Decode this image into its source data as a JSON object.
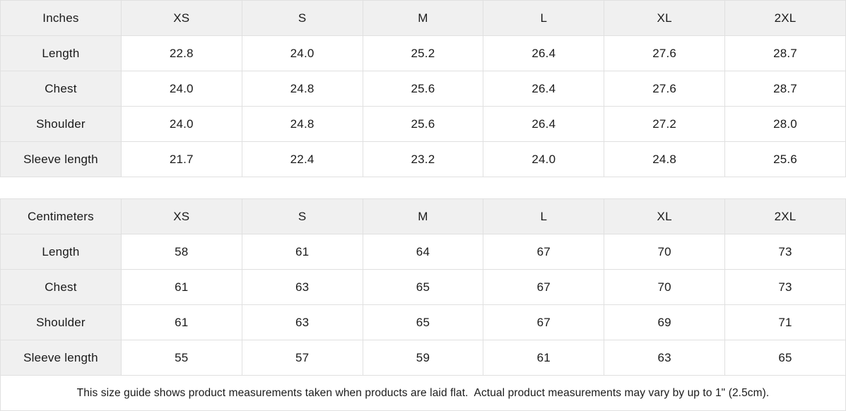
{
  "chart_data": [
    {
      "type": "table",
      "title": "Size guide (Inches)",
      "unit_label": "Inches",
      "sizes": [
        "XS",
        "S",
        "M",
        "L",
        "XL",
        "2XL"
      ],
      "rows": [
        {
          "label": "Length",
          "values": [
            "22.8",
            "24.0",
            "25.2",
            "26.4",
            "27.6",
            "28.7"
          ]
        },
        {
          "label": "Chest",
          "values": [
            "24.0",
            "24.8",
            "25.6",
            "26.4",
            "27.6",
            "28.7"
          ]
        },
        {
          "label": "Shoulder",
          "values": [
            "24.0",
            "24.8",
            "25.6",
            "26.4",
            "27.2",
            "28.0"
          ]
        },
        {
          "label": "Sleeve length",
          "values": [
            "21.7",
            "22.4",
            "23.2",
            "24.0",
            "24.8",
            "25.6"
          ]
        }
      ]
    },
    {
      "type": "table",
      "title": "Size guide (Centimeters)",
      "unit_label": "Centimeters",
      "sizes": [
        "XS",
        "S",
        "M",
        "L",
        "XL",
        "2XL"
      ],
      "rows": [
        {
          "label": "Length",
          "values": [
            "58",
            "61",
            "64",
            "67",
            "70",
            "73"
          ]
        },
        {
          "label": "Chest",
          "values": [
            "61",
            "63",
            "65",
            "67",
            "70",
            "73"
          ]
        },
        {
          "label": "Shoulder",
          "values": [
            "61",
            "63",
            "65",
            "67",
            "69",
            "71"
          ]
        },
        {
          "label": "Sleeve length",
          "values": [
            "55",
            "57",
            "59",
            "61",
            "63",
            "65"
          ]
        }
      ]
    }
  ],
  "footer": {
    "note": "This size guide shows product measurements taken when products are laid flat.  Actual product measurements may vary by up to 1\" (2.5cm)."
  },
  "colors": {
    "header_bg": "#f0f0f0",
    "border": "#e0e0e0",
    "text": "#1a1a1a",
    "background": "#ffffff"
  }
}
